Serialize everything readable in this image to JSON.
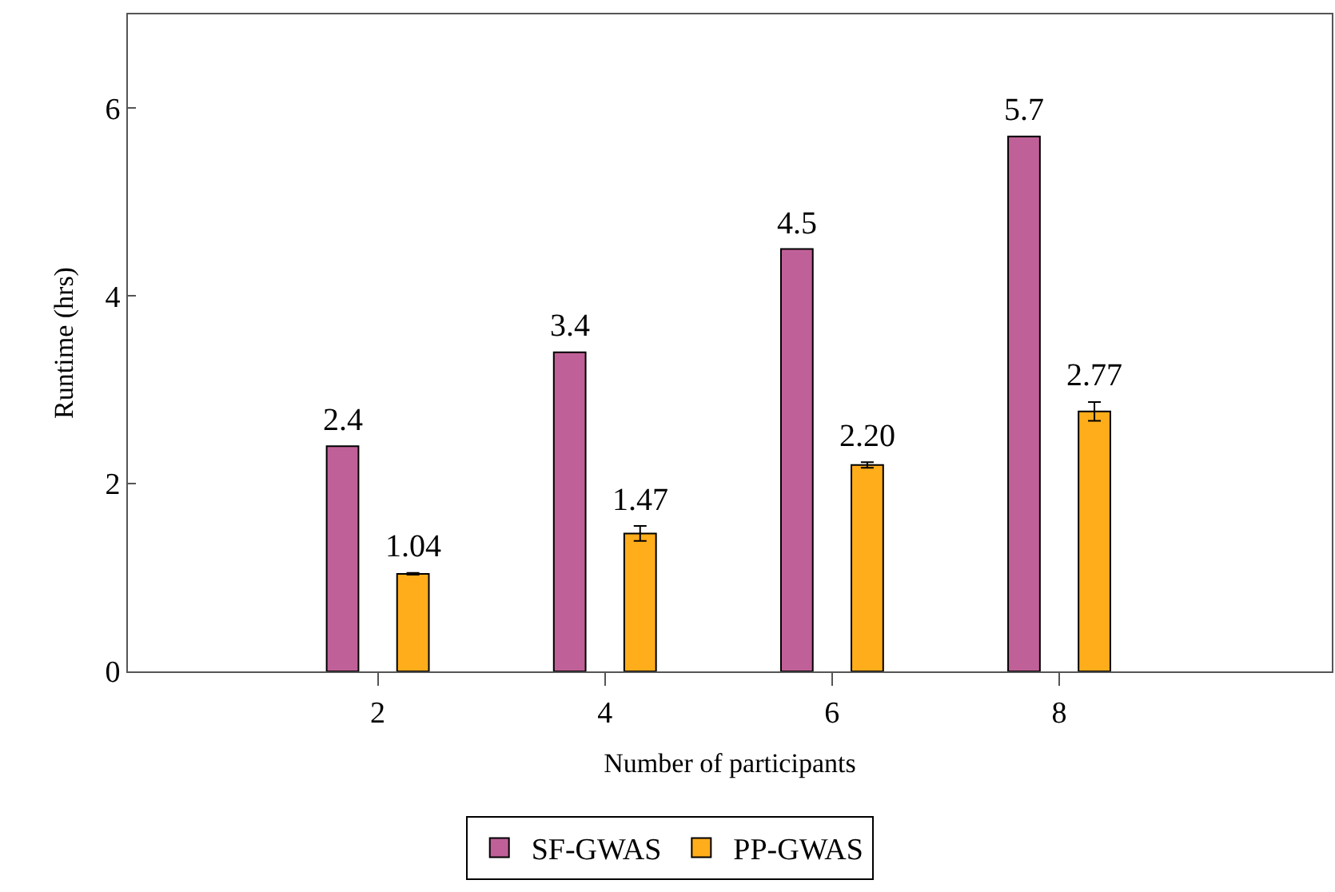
{
  "chart_data": {
    "type": "bar",
    "xlabel": "Number of participants",
    "ylabel": "Runtime (hrs)",
    "x": [
      2,
      4,
      6,
      8
    ],
    "series": [
      {
        "name": "SF-GWAS",
        "color": "#c06098",
        "values": [
          2.4,
          3.4,
          4.5,
          5.7
        ],
        "value_labels": [
          "2.4",
          "3.4",
          "4.5",
          "5.7"
        ]
      },
      {
        "name": "PP-GWAS",
        "color": "#ffad1a",
        "values": [
          1.04,
          1.47,
          2.2,
          2.77
        ],
        "value_labels": [
          "1.04",
          "1.47",
          "2.20",
          "2.77"
        ],
        "errors": [
          0.01,
          0.08,
          0.03,
          0.1
        ]
      }
    ],
    "xlim": [
      -0.2,
      10.4
    ],
    "xticks": [
      2,
      4,
      6,
      8
    ],
    "ylim": [
      0,
      7
    ],
    "yticks": [
      0,
      2,
      4,
      6
    ],
    "legend": "bottom"
  }
}
